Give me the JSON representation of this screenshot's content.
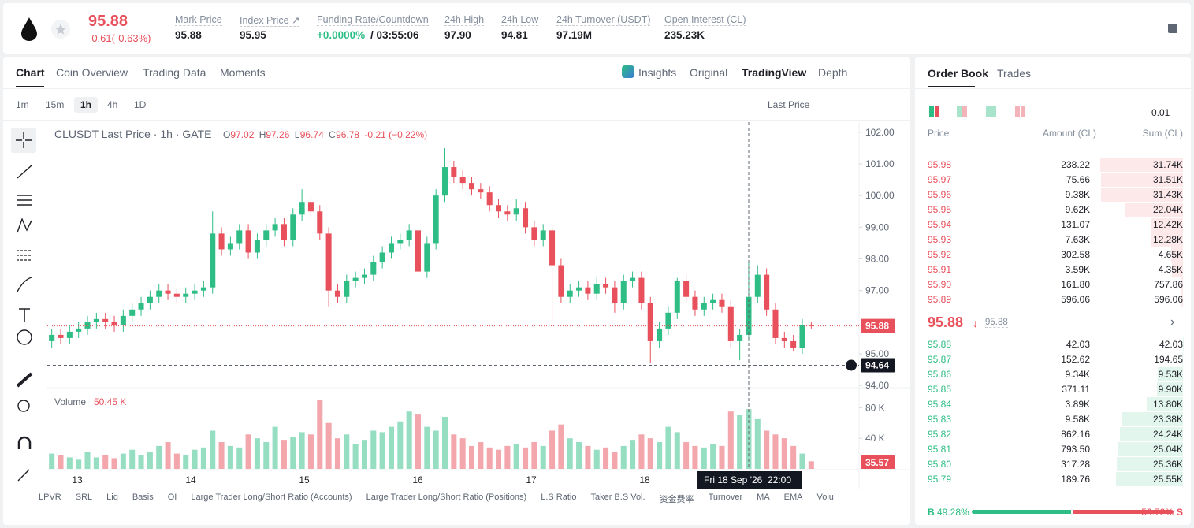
{
  "header": {
    "price": "95.88",
    "change": "-0.61(-0.63%)",
    "stats": [
      {
        "label": "Mark Price",
        "value": "95.88"
      },
      {
        "label": "Index Price ↗",
        "value": "95.95"
      },
      {
        "label": "Funding Rate/Countdown",
        "value": "+0.0000%",
        "extra": "/ 03:55:06"
      },
      {
        "label": "24h High",
        "value": "97.90"
      },
      {
        "label": "24h Low",
        "value": "94.81"
      },
      {
        "label": "24h Turnover (USDT)",
        "value": "97.19M"
      },
      {
        "label": "Open Interest (CL)",
        "value": "235.23K"
      }
    ]
  },
  "tabs": [
    "Chart",
    "Coin Overview",
    "Trading Data",
    "Moments"
  ],
  "view_tabs": [
    "Insights",
    "Original",
    "TradingView",
    "Depth"
  ],
  "intervals": [
    "1m",
    "15m",
    "1h",
    "4h",
    "1D"
  ],
  "price_type": "Last Price",
  "indicators": [
    "LPVR",
    "SRL",
    "Liq",
    "Basis",
    "OI",
    "Large Trader Long/Short Ratio (Accounts)",
    "Large Trader Long/Short Ratio (Positions)",
    "L.S Ratio",
    "Taker B.S Vol.",
    "资金费率",
    "Turnover",
    "MA",
    "EMA",
    "Volu"
  ],
  "chart_data": {
    "type": "candlestick",
    "title": "CLUSDT Last Price · 1h · GATE",
    "ohlc_legend": [
      {
        "label": "O",
        "value": "97.02"
      },
      {
        "label": "H",
        "value": "97.26"
      },
      {
        "label": "L",
        "value": "96.74"
      },
      {
        "label": "C",
        "value": "96.78"
      }
    ],
    "legend_change": "-0.21 (−0.22%)",
    "volume_title": "Volume",
    "volume_value": "50.45 K",
    "up_color": "#2ebd85",
    "down_color": "#e8505b",
    "ylim": [
      93.93,
      102.32
    ],
    "yticks": [
      {
        "value": 102,
        "label": "102.00"
      },
      {
        "value": 101,
        "label": "101.00"
      },
      {
        "value": 100,
        "label": "100.00"
      },
      {
        "value": 99,
        "label": "99.00"
      },
      {
        "value": 98,
        "label": "98.00"
      },
      {
        "value": 97,
        "label": "97.00"
      },
      {
        "value": 95,
        "label": "95.00"
      },
      {
        "value": 94,
        "label": "94.00"
      }
    ],
    "y2lim": [
      0,
      103
    ],
    "y2ticks": [
      {
        "value": 80,
        "label": "80 K"
      },
      {
        "value": 40,
        "label": "40 K"
      }
    ],
    "x_labels": [
      "13",
      "14",
      "15",
      "16",
      "17",
      "18"
    ],
    "last_price": {
      "value": 95.88,
      "label": "95.88"
    },
    "crosshair": {
      "value": 94.64,
      "label": "94.64",
      "time": "Fri 18 Sep '26  22:00"
    },
    "volume_tag": "35.57",
    "ohlc": [
      [
        95.4,
        95.8,
        95.2,
        95.6
      ],
      [
        95.6,
        95.8,
        95.3,
        95.5
      ],
      [
        95.5,
        95.9,
        95.3,
        95.7
      ],
      [
        95.7,
        96.0,
        95.5,
        95.8
      ],
      [
        95.8,
        96.2,
        95.6,
        96.0
      ],
      [
        96.0,
        96.3,
        95.8,
        96.1
      ],
      [
        96.1,
        96.3,
        95.8,
        96.0
      ],
      [
        96.0,
        96.2,
        95.7,
        95.9
      ],
      [
        95.9,
        96.4,
        95.7,
        96.2
      ],
      [
        96.2,
        96.6,
        96.0,
        96.4
      ],
      [
        96.4,
        96.8,
        96.2,
        96.6
      ],
      [
        96.6,
        97.0,
        96.4,
        96.8
      ],
      [
        96.8,
        97.2,
        96.6,
        97.0
      ],
      [
        97.0,
        97.2,
        96.7,
        96.9
      ],
      [
        96.9,
        97.1,
        96.6,
        96.8
      ],
      [
        96.8,
        97.1,
        96.6,
        96.9
      ],
      [
        96.9,
        97.2,
        96.7,
        97.0
      ],
      [
        97.0,
        97.3,
        96.8,
        97.1
      ],
      [
        97.1,
        99.5,
        96.9,
        98.8
      ],
      [
        98.8,
        99.0,
        98.1,
        98.3
      ],
      [
        98.3,
        98.7,
        98.1,
        98.5
      ],
      [
        98.5,
        99.1,
        98.3,
        98.9
      ],
      [
        98.9,
        99.1,
        98.0,
        98.2
      ],
      [
        98.2,
        98.8,
        98.0,
        98.6
      ],
      [
        98.6,
        99.1,
        98.4,
        98.9
      ],
      [
        98.9,
        99.3,
        98.7,
        99.1
      ],
      [
        99.1,
        99.3,
        98.4,
        98.6
      ],
      [
        98.6,
        99.6,
        98.4,
        99.4
      ],
      [
        99.4,
        100.2,
        99.2,
        99.8
      ],
      [
        99.8,
        100.0,
        99.3,
        99.5
      ],
      [
        99.5,
        99.7,
        98.6,
        98.8
      ],
      [
        98.8,
        99.0,
        96.5,
        97.0
      ],
      [
        97.0,
        97.2,
        96.6,
        96.8
      ],
      [
        96.8,
        97.5,
        96.6,
        97.3
      ],
      [
        97.3,
        97.6,
        97.1,
        97.4
      ],
      [
        97.4,
        97.7,
        97.2,
        97.5
      ],
      [
        97.5,
        98.1,
        97.3,
        97.9
      ],
      [
        97.9,
        98.4,
        97.7,
        98.2
      ],
      [
        98.2,
        98.7,
        98.0,
        98.5
      ],
      [
        98.5,
        98.8,
        98.3,
        98.6
      ],
      [
        98.6,
        99.1,
        98.4,
        98.9
      ],
      [
        98.9,
        99.1,
        97.0,
        97.6
      ],
      [
        97.6,
        98.7,
        97.4,
        98.5
      ],
      [
        98.5,
        100.2,
        98.3,
        100.0
      ],
      [
        100.0,
        101.5,
        99.8,
        100.9
      ],
      [
        100.9,
        101.1,
        100.4,
        100.6
      ],
      [
        100.6,
        100.8,
        100.2,
        100.4
      ],
      [
        100.4,
        100.6,
        100.0,
        100.2
      ],
      [
        100.2,
        100.4,
        99.9,
        100.1
      ],
      [
        100.1,
        100.3,
        99.5,
        99.7
      ],
      [
        99.7,
        99.9,
        99.3,
        99.5
      ],
      [
        99.5,
        99.7,
        99.2,
        99.4
      ],
      [
        99.4,
        99.9,
        99.2,
        99.6
      ],
      [
        99.6,
        99.8,
        98.8,
        99.0
      ],
      [
        99.0,
        99.2,
        98.4,
        98.6
      ],
      [
        98.6,
        99.1,
        98.4,
        98.9
      ],
      [
        98.9,
        99.1,
        96.0,
        97.8
      ],
      [
        97.8,
        98.0,
        96.6,
        96.8
      ],
      [
        96.8,
        97.2,
        96.6,
        97.0
      ],
      [
        97.0,
        97.3,
        96.8,
        97.1
      ],
      [
        97.1,
        97.3,
        96.7,
        96.9
      ],
      [
        96.9,
        97.4,
        96.7,
        97.2
      ],
      [
        97.2,
        97.4,
        96.9,
        97.1
      ],
      [
        97.1,
        97.3,
        96.3,
        96.6
      ],
      [
        96.6,
        97.5,
        96.4,
        97.3
      ],
      [
        97.3,
        97.6,
        97.1,
        97.4
      ],
      [
        97.4,
        97.6,
        96.4,
        96.6
      ],
      [
        96.6,
        96.8,
        94.7,
        95.4
      ],
      [
        95.4,
        96.0,
        95.2,
        95.8
      ],
      [
        95.8,
        96.5,
        95.6,
        96.3
      ],
      [
        96.3,
        97.4,
        96.1,
        97.3
      ],
      [
        97.3,
        97.5,
        96.6,
        96.8
      ],
      [
        96.8,
        97.0,
        96.2,
        96.4
      ],
      [
        96.4,
        96.8,
        96.2,
        96.6
      ],
      [
        96.6,
        96.9,
        96.4,
        96.7
      ],
      [
        96.7,
        96.9,
        96.3,
        96.5
      ],
      [
        96.5,
        96.7,
        95.2,
        95.4
      ],
      [
        95.4,
        95.8,
        94.8,
        95.6
      ],
      [
        95.6,
        97.9,
        95.4,
        96.8
      ],
      [
        96.8,
        97.8,
        96.6,
        97.5
      ],
      [
        97.5,
        97.7,
        96.2,
        96.4
      ],
      [
        96.4,
        96.6,
        95.3,
        95.5
      ],
      [
        95.5,
        95.7,
        95.2,
        95.4
      ],
      [
        95.4,
        95.6,
        95.1,
        95.2
      ],
      [
        95.2,
        96.1,
        95.0,
        95.9
      ],
      [
        95.9,
        96.0,
        95.8,
        95.88
      ]
    ],
    "volume": [
      20,
      18,
      15,
      12,
      22,
      15,
      18,
      14,
      20,
      25,
      18,
      22,
      30,
      35,
      20,
      18,
      25,
      28,
      50,
      35,
      30,
      28,
      45,
      40,
      35,
      55,
      38,
      42,
      48,
      45,
      90,
      60,
      40,
      45,
      32,
      38,
      50,
      48,
      55,
      62,
      75,
      72,
      55,
      50,
      68,
      45,
      40,
      30,
      35,
      28,
      25,
      30,
      32,
      28,
      35,
      30,
      50,
      58,
      40,
      35,
      30,
      25,
      28,
      22,
      30,
      38,
      45,
      40,
      35,
      55,
      48,
      35,
      30,
      28,
      32,
      30,
      75,
      70,
      78,
      65,
      50,
      45,
      40,
      30,
      20,
      10
    ]
  },
  "order_book": {
    "tabs": [
      "Order Book",
      "Trades"
    ],
    "precision": "0.01",
    "headers": [
      "Price",
      "Amount (CL)",
      "Sum (CL)"
    ],
    "asks": [
      [
        "95.98",
        "238.22",
        "31.74K"
      ],
      [
        "95.97",
        "75.66",
        "31.51K"
      ],
      [
        "95.96",
        "9.38K",
        "31.43K"
      ],
      [
        "95.95",
        "9.62K",
        "22.04K"
      ],
      [
        "95.94",
        "131.07",
        "12.42K"
      ],
      [
        "95.93",
        "7.63K",
        "12.28K"
      ],
      [
        "95.92",
        "302.58",
        "4.65K"
      ],
      [
        "95.91",
        "3.59K",
        "4.35K"
      ],
      [
        "95.90",
        "161.80",
        "757.86"
      ],
      [
        "95.89",
        "596.06",
        "596.06"
      ]
    ],
    "mid_price": "95.88",
    "mid_mark": "95.88",
    "bids": [
      [
        "95.88",
        "42.03",
        "42.03"
      ],
      [
        "95.87",
        "152.62",
        "194.65"
      ],
      [
        "95.86",
        "9.34K",
        "9.53K"
      ],
      [
        "95.85",
        "371.11",
        "9.90K"
      ],
      [
        "95.84",
        "3.89K",
        "13.80K"
      ],
      [
        "95.83",
        "9.58K",
        "23.38K"
      ],
      [
        "95.82",
        "862.16",
        "24.24K"
      ],
      [
        "95.81",
        "793.50",
        "25.04K"
      ],
      [
        "95.80",
        "317.28",
        "25.36K"
      ],
      [
        "95.79",
        "189.76",
        "25.55K"
      ]
    ],
    "buy_label": "B",
    "buy_pct": "49.28%",
    "sell_pct": "50.72%",
    "sell_label": "S"
  }
}
